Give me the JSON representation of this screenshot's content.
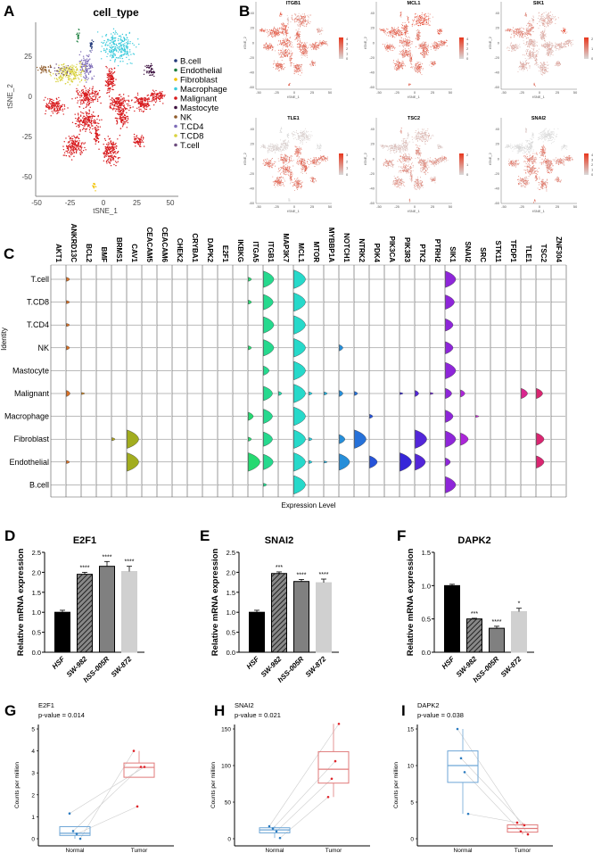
{
  "chart_data": [
    {
      "panel": "A",
      "type": "scatter",
      "title": "cell_type",
      "xlabel": "tSNE_1",
      "ylabel": "tSNE_2",
      "xticks": [
        -50,
        -25,
        0,
        25,
        50
      ],
      "yticks": [
        25,
        0,
        -25,
        -50
      ],
      "legend_position": "right",
      "legend": [
        {
          "name": "B.cell",
          "color": "#22397a"
        },
        {
          "name": "Endothelial",
          "color": "#1c7f3f"
        },
        {
          "name": "Fibroblast",
          "color": "#f2c200"
        },
        {
          "name": "Macrophage",
          "color": "#3ccbdc"
        },
        {
          "name": "Malignant",
          "color": "#d7191c"
        },
        {
          "name": "Mastocyte",
          "color": "#3d1240"
        },
        {
          "name": "NK",
          "color": "#8f5b2a"
        },
        {
          "name": "T.CD4",
          "color": "#7e6cb7"
        },
        {
          "name": "T.CD8",
          "color": "#d9d240"
        },
        {
          "name": "T.cell",
          "color": "#6d4d7e"
        }
      ],
      "clusters": [
        {
          "type": "Macrophage",
          "x": 11,
          "y": 31,
          "sx": 10,
          "sy": 7,
          "n": 260
        },
        {
          "type": "Endothelial",
          "x": -19,
          "y": 38,
          "sx": 1,
          "sy": 3,
          "n": 20
        },
        {
          "type": "B.cell",
          "x": -9,
          "y": 32,
          "sx": 1,
          "sy": 3,
          "n": 20
        },
        {
          "type": "Mastocyte",
          "x": 35,
          "y": 16,
          "sx": 3,
          "sy": 3,
          "n": 50
        },
        {
          "type": "T.CD4",
          "x": -13,
          "y": 19,
          "sx": 4,
          "sy": 7,
          "n": 120
        },
        {
          "type": "T.CD8",
          "x": -26,
          "y": 14,
          "sx": 10,
          "sy": 5,
          "n": 200
        },
        {
          "type": "NK",
          "x": -44,
          "y": 17,
          "sx": 4,
          "sy": 2,
          "n": 40
        },
        {
          "type": "T.cell",
          "x": -30,
          "y": 16,
          "sx": 6,
          "sy": 3,
          "n": 30
        },
        {
          "type": "Fibroblast",
          "x": -7,
          "y": -56,
          "sx": 1,
          "sy": 2,
          "n": 15
        },
        {
          "type": "Malignant",
          "x": 5,
          "y": 10,
          "sx": 3,
          "sy": 6,
          "n": 120
        },
        {
          "type": "Malignant",
          "x": -12,
          "y": 0,
          "sx": 7,
          "sy": 5,
          "n": 170
        },
        {
          "type": "Malignant",
          "x": -36,
          "y": -6,
          "sx": 6,
          "sy": 4,
          "n": 130
        },
        {
          "type": "Malignant",
          "x": 11,
          "y": -4,
          "sx": 6,
          "sy": 4,
          "n": 130
        },
        {
          "type": "Malignant",
          "x": 29,
          "y": -4,
          "sx": 6,
          "sy": 4,
          "n": 130
        },
        {
          "type": "Malignant",
          "x": 40,
          "y": 0,
          "sx": 5,
          "sy": 3,
          "n": 90
        },
        {
          "type": "Malignant",
          "x": 14,
          "y": -12,
          "sx": 4,
          "sy": 6,
          "n": 130
        },
        {
          "type": "Malignant",
          "x": -12,
          "y": -15,
          "sx": 7,
          "sy": 5,
          "n": 170
        },
        {
          "type": "Malignant",
          "x": -22,
          "y": -31,
          "sx": 6,
          "sy": 5,
          "n": 170
        },
        {
          "type": "Malignant",
          "x": 5,
          "y": -34,
          "sx": 5,
          "sy": 6,
          "n": 170
        },
        {
          "type": "Malignant",
          "x": 26,
          "y": -28,
          "sx": 3,
          "sy": 3,
          "n": 60
        },
        {
          "type": "Malignant",
          "x": -5,
          "y": -24,
          "sx": 1.5,
          "sy": 6,
          "n": 50
        }
      ]
    },
    {
      "panel": "B",
      "type": "scatter",
      "xlabel": "tSNE_1",
      "ylabel": "tSNE_2",
      "xticks": [
        -50,
        -25,
        0,
        25,
        50
      ],
      "yticks": [
        -60,
        -40,
        -20,
        0,
        20,
        40
      ],
      "low_color": "#d9d9d9",
      "high_color": "#e8361c",
      "cell_type_order": [
        "B.cell",
        "Endothelial",
        "Fibroblast",
        "Macrophage",
        "Malignant",
        "Mastocyte",
        "NK",
        "T.CD4",
        "T.CD8",
        "T.cell"
      ],
      "genes": [
        {
          "name": "ITGB1",
          "scale_ticks": [
            0,
            1,
            2,
            3,
            4
          ],
          "expression": [
            0.2,
            0.8,
            0.8,
            0.5,
            0.6,
            0.4,
            0.7,
            0.7,
            0.7,
            0.7
          ]
        },
        {
          "name": "MCL1",
          "scale_ticks": [
            0,
            1,
            2,
            3,
            4
          ],
          "expression": [
            0.7,
            0.7,
            0.7,
            0.8,
            0.6,
            0.8,
            0.7,
            0.7,
            0.7,
            0.7
          ]
        },
        {
          "name": "SIK1",
          "scale_ticks": [
            0,
            1,
            2
          ],
          "expression": [
            0.3,
            0.5,
            0.5,
            0.3,
            0.25,
            0.8,
            0.6,
            0.5,
            0.5,
            0.5
          ]
        },
        {
          "name": "TLE1",
          "scale_ticks": [
            0,
            1,
            2,
            3
          ],
          "expression": [
            0,
            0,
            0,
            0.05,
            0.6,
            0,
            0.05,
            0.05,
            0.05,
            0.05
          ]
        },
        {
          "name": "TSC2",
          "scale_ticks": [
            0,
            1,
            2
          ],
          "expression": [
            0.1,
            0.4,
            0.4,
            0.2,
            0.4,
            0.1,
            0.15,
            0.15,
            0.15,
            0.15
          ]
        },
        {
          "name": "SNAI2",
          "scale_ticks": [
            0,
            1,
            2,
            3,
            4
          ],
          "expression": [
            0,
            0.1,
            0.7,
            0,
            0.5,
            0,
            0,
            0,
            0,
            0
          ]
        }
      ]
    },
    {
      "panel": "C",
      "type": "violin",
      "xlabel": "Expression Level",
      "ylabel": "Identity",
      "cell_types": [
        "T.cell",
        "T.CD8",
        "T.CD4",
        "NK",
        "Mastocyte",
        "Malignant",
        "Macrophage",
        "Fibroblast",
        "Endothelial",
        "B.cell"
      ],
      "genes": [
        {
          "name": "AKT1",
          "levels": [
            0,
            0,
            0,
            0,
            0,
            0,
            0,
            0,
            0,
            0
          ]
        },
        {
          "name": "ANKRD13C",
          "levels": [
            0.2,
            0.15,
            0.15,
            0.2,
            0,
            0.3,
            0,
            0,
            0.15,
            0
          ]
        },
        {
          "name": "BCL2",
          "levels": [
            0,
            0,
            0,
            0,
            0,
            0.1,
            0,
            0,
            0,
            0
          ]
        },
        {
          "name": "BMF",
          "levels": [
            0,
            0,
            0,
            0,
            0,
            0,
            0,
            0,
            0,
            0
          ]
        },
        {
          "name": "BRMS1",
          "levels": [
            0,
            0,
            0,
            0,
            0,
            0,
            0,
            0.15,
            0,
            0
          ]
        },
        {
          "name": "CAV1",
          "levels": [
            0,
            0,
            0,
            0,
            0,
            0,
            0,
            0.9,
            0.9,
            0
          ]
        },
        {
          "name": "CEACAM5",
          "levels": [
            0,
            0,
            0,
            0,
            0,
            0,
            0,
            0,
            0,
            0
          ]
        },
        {
          "name": "CEACAM6",
          "levels": [
            0,
            0,
            0,
            0,
            0,
            0,
            0,
            0,
            0,
            0
          ]
        },
        {
          "name": "CHEK2",
          "levels": [
            0,
            0,
            0,
            0,
            0,
            0,
            0,
            0,
            0,
            0
          ]
        },
        {
          "name": "CRYBA1",
          "levels": [
            0,
            0,
            0,
            0,
            0,
            0,
            0,
            0,
            0,
            0
          ]
        },
        {
          "name": "DAPK2",
          "levels": [
            0,
            0,
            0,
            0,
            0,
            0,
            0,
            0,
            0,
            0
          ]
        },
        {
          "name": "E2F1",
          "levels": [
            0,
            0,
            0,
            0,
            0,
            0,
            0,
            0,
            0,
            0
          ]
        },
        {
          "name": "IKBKG",
          "levels": [
            0,
            0,
            0,
            0,
            0,
            0,
            0,
            0,
            0,
            0
          ]
        },
        {
          "name": "ITGA5",
          "levels": [
            0.2,
            0.2,
            0,
            0.2,
            0,
            0,
            0.4,
            0.2,
            0.9,
            0
          ]
        },
        {
          "name": "ITGB1",
          "levels": [
            0.8,
            0.75,
            0.8,
            0.8,
            0.45,
            0.7,
            0.7,
            0.7,
            0.75,
            0.15
          ]
        },
        {
          "name": "MAP3K7",
          "levels": [
            0,
            0,
            0,
            0,
            0,
            0.2,
            0,
            0,
            0,
            0
          ]
        },
        {
          "name": "MCL1",
          "levels": [
            0.9,
            0.9,
            0.9,
            0.9,
            0.9,
            0.9,
            0.9,
            0.9,
            0.9,
            0.9
          ]
        },
        {
          "name": "MTOR",
          "levels": [
            0,
            0,
            0,
            0,
            0,
            0.15,
            0,
            0.15,
            0.15,
            0
          ]
        },
        {
          "name": "MYBBP1A",
          "levels": [
            0,
            0,
            0,
            0,
            0,
            0.15,
            0,
            0,
            0.1,
            0
          ]
        },
        {
          "name": "NOTCH1",
          "levels": [
            0,
            0,
            0,
            0.3,
            0,
            0.3,
            0,
            0.45,
            0.8,
            0
          ]
        },
        {
          "name": "NTRK2",
          "levels": [
            0,
            0,
            0,
            0,
            0,
            0.2,
            0,
            0.9,
            0,
            0
          ]
        },
        {
          "name": "PDK4",
          "levels": [
            0,
            0,
            0,
            0,
            0,
            0,
            0.2,
            0,
            0.6,
            0
          ]
        },
        {
          "name": "PIK3CA",
          "levels": [
            0,
            0,
            0,
            0,
            0,
            0,
            0,
            0,
            0,
            0
          ]
        },
        {
          "name": "PIK3R3",
          "levels": [
            0,
            0,
            0,
            0,
            0,
            0.1,
            0,
            0,
            0.9,
            0
          ]
        },
        {
          "name": "PTK2",
          "levels": [
            0,
            0,
            0,
            0,
            0,
            0.3,
            0,
            0.9,
            0.8,
            0
          ]
        },
        {
          "name": "PTRH2",
          "levels": [
            0,
            0,
            0,
            0,
            0,
            0.1,
            0,
            0,
            0,
            0
          ]
        },
        {
          "name": "SIK1",
          "levels": [
            0.8,
            0.7,
            0.6,
            0.6,
            0.8,
            0.5,
            0.6,
            0.8,
            0.4,
            0.8
          ]
        },
        {
          "name": "SNAI2",
          "levels": [
            0,
            0,
            0,
            0,
            0,
            0.35,
            0,
            0.6,
            0,
            0
          ]
        },
        {
          "name": "SRC",
          "levels": [
            0,
            0,
            0,
            0,
            0,
            0,
            0.1,
            0,
            0,
            0
          ]
        },
        {
          "name": "STK11",
          "levels": [
            0,
            0,
            0,
            0,
            0,
            0,
            0,
            0,
            0,
            0
          ]
        },
        {
          "name": "TFDP1",
          "levels": [
            0,
            0,
            0,
            0,
            0,
            0,
            0,
            0,
            0,
            0
          ]
        },
        {
          "name": "TLE1",
          "levels": [
            0,
            0,
            0,
            0,
            0,
            0.5,
            0,
            0,
            0,
            0
          ]
        },
        {
          "name": "TSC2",
          "levels": [
            0,
            0,
            0,
            0,
            0,
            0.5,
            0,
            0.6,
            0.6,
            0
          ]
        },
        {
          "name": "ZNF304",
          "levels": [
            0,
            0,
            0,
            0,
            0,
            0,
            0,
            0,
            0,
            0
          ]
        }
      ]
    },
    {
      "panel": "D",
      "type": "bar",
      "title": "E2F1",
      "ylabel": "Relative mRNA expression",
      "ylim": [
        0,
        2.5
      ],
      "yticks": [
        "0.0",
        "0.5",
        "1.0",
        "1.5",
        "2.0",
        "2.5"
      ],
      "categories": [
        "HSF",
        "SW-982",
        "hSS-005R",
        "SW-872"
      ],
      "values": [
        1.0,
        1.95,
        2.15,
        2.02
      ],
      "errors": [
        0.05,
        0.05,
        0.12,
        0.13
      ],
      "significance": [
        "",
        "****",
        "****",
        "****"
      ]
    },
    {
      "panel": "E",
      "type": "bar",
      "title": "SNAI2",
      "ylabel": "Relative mRNA expression",
      "ylim": [
        0,
        2.5
      ],
      "yticks": [
        "0.0",
        "0.5",
        "1.0",
        "1.5",
        "2.0",
        "2.5"
      ],
      "categories": [
        "HSF",
        "SW-982",
        "hSS-005R",
        "SW-872"
      ],
      "values": [
        1.0,
        1.97,
        1.77,
        1.74
      ],
      "errors": [
        0.05,
        0.04,
        0.05,
        0.09
      ],
      "significance": [
        "",
        "***",
        "****",
        "****"
      ]
    },
    {
      "panel": "F",
      "type": "bar",
      "title": "DAPK2",
      "ylabel": "Relative mRNA expression",
      "ylim": [
        0,
        1.5
      ],
      "yticks": [
        "0.0",
        "0.5",
        "1.0",
        "1.5"
      ],
      "categories": [
        "HSF",
        "SW-982",
        "hSS-005R",
        "SW-872"
      ],
      "values": [
        1.0,
        0.5,
        0.36,
        0.61
      ],
      "errors": [
        0.02,
        0.01,
        0.03,
        0.05
      ],
      "significance": [
        "",
        "***",
        "****",
        "*"
      ]
    },
    {
      "panel": "G",
      "type": "box",
      "title": "E2F1",
      "subtitle": "p-value = 0.014",
      "ylabel": "Counts per million",
      "ylim": [
        0,
        5
      ],
      "yticks": [
        "0",
        "1",
        "2",
        "3",
        "4",
        "5"
      ],
      "categories": [
        "Normal",
        "Tumor"
      ],
      "boxes": [
        {
          "q1": 0.15,
          "median": 0.25,
          "q3": 0.55,
          "min": 0.0,
          "max": 0.55
        },
        {
          "q1": 2.8,
          "median": 3.25,
          "q3": 3.45,
          "min": 2.8,
          "max": 4.0
        }
      ],
      "points": [
        [
          1.15,
          0.35,
          0.22,
          0.0
        ],
        [
          3.27,
          3.27,
          1.47,
          4.0
        ]
      ]
    },
    {
      "panel": "H",
      "type": "box",
      "title": "SNAI2",
      "subtitle": "p-value = 0.021",
      "ylabel": "Counts per million",
      "ylim": [
        0,
        150
      ],
      "yticks": [
        "0",
        "50",
        "100",
        "150"
      ],
      "categories": [
        "Normal",
        "Tumor"
      ],
      "boxes": [
        {
          "q1": 8,
          "median": 12,
          "q3": 15,
          "min": 1,
          "max": 17
        },
        {
          "q1": 76,
          "median": 95,
          "q3": 119,
          "min": 57,
          "max": 157
        }
      ],
      "points": [
        [
          17,
          14,
          10,
          1
        ],
        [
          157,
          106,
          82,
          57
        ]
      ]
    },
    {
      "panel": "I",
      "type": "box",
      "title": "DAPK2",
      "subtitle": "p-value = 0.038",
      "ylabel": "Counts per million",
      "ylim": [
        0,
        15
      ],
      "yticks": [
        "0",
        "5",
        "10",
        "15"
      ],
      "categories": [
        "Normal",
        "Tumor"
      ],
      "boxes": [
        {
          "q1": 7.7,
          "median": 10,
          "q3": 12,
          "min": 3.4,
          "max": 15
        },
        {
          "q1": 0.9,
          "median": 1.4,
          "q3": 1.9,
          "min": 0.6,
          "max": 2.2
        }
      ],
      "points": [
        [
          15,
          11,
          9.1,
          3.4
        ],
        [
          0.6,
          1.85,
          1.0,
          2.2
        ]
      ]
    }
  ]
}
